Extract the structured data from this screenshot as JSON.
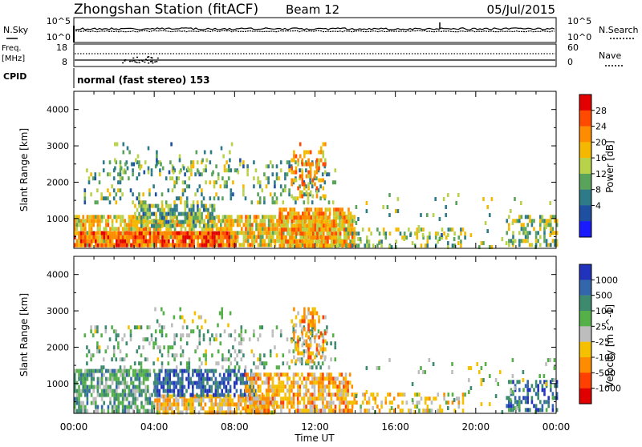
{
  "header": {
    "station": "Zhongshan Station (fitACF)",
    "beam": "Beam 12",
    "date": "05/Jul/2015"
  },
  "noise_panel": {
    "left_label": "N.Sky",
    "right_label": "N.Search",
    "left_ticks": [
      "10^5",
      "10^0"
    ],
    "right_ticks": [
      "10^5",
      "10^0"
    ]
  },
  "freq_panel": {
    "left_label_1": "Freq.",
    "left_label_2": "[MHz]",
    "left_ticks": [
      "18",
      "8"
    ],
    "right_label": "Nave",
    "right_ticks": [
      "60",
      "0"
    ]
  },
  "cpid": {
    "label": "CPID",
    "value": "normal (fast stereo) 153"
  },
  "axes": {
    "ylabel": "Slant Range [km]",
    "xlabel": "Time UT",
    "y_ticks": [
      "4000",
      "3000",
      "2000",
      "1000"
    ],
    "x_ticks": [
      "00:00",
      "04:00",
      "08:00",
      "12:00",
      "16:00",
      "20:00",
      "00:00"
    ]
  },
  "power_scale": {
    "title": "Power [dB]",
    "labels": [
      "28",
      "24",
      "20",
      "16",
      "12",
      "8",
      "4"
    ],
    "colors": [
      "#e30000",
      "#ff4a00",
      "#ff8c00",
      "#f5b800",
      "#b8d24a",
      "#5aa35a",
      "#2f7a88",
      "#1f4fa0",
      "#1a1aff"
    ]
  },
  "velocity_scale": {
    "title": "Velocity [m s^-1]",
    "labels": [
      "1000",
      "500",
      "100",
      "25",
      "-25",
      "-100",
      "-500",
      "-1000"
    ],
    "colors": [
      "#2233bb",
      "#3366aa",
      "#3d8a6e",
      "#55b04a",
      "#bdbdbd",
      "#f5c000",
      "#ff8c00",
      "#ff4000",
      "#e00000"
    ]
  },
  "chart_data": [
    {
      "type": "heatmap",
      "name": "Power",
      "xlabel": "Time UT",
      "ylabel": "Slant Range [km]",
      "xlim": [
        0,
        24
      ],
      "ylim": [
        180,
        4500
      ],
      "colorbar_range": [
        0,
        30
      ],
      "blobs": [
        {
          "t0": 0.0,
          "t1": 14.0,
          "r0": 220,
          "r1": 1100,
          "dens": 0.75,
          "v": 18
        },
        {
          "t0": 0.0,
          "t1": 8.0,
          "r0": 220,
          "r1": 650,
          "dens": 0.85,
          "v": 24
        },
        {
          "t0": 3.0,
          "t1": 7.0,
          "r0": 800,
          "r1": 1400,
          "dens": 0.7,
          "v": 12
        },
        {
          "t0": 10.2,
          "t1": 13.8,
          "r0": 300,
          "r1": 1300,
          "dens": 0.8,
          "v": 20
        },
        {
          "t0": 0.5,
          "t1": 13.0,
          "r0": 1400,
          "r1": 2600,
          "dens": 0.22,
          "v": 12
        },
        {
          "t0": 2.0,
          "t1": 8.5,
          "r0": 2300,
          "r1": 3100,
          "dens": 0.12,
          "v": 10
        },
        {
          "t0": 10.8,
          "t1": 12.5,
          "r0": 1600,
          "r1": 3100,
          "dens": 0.35,
          "v": 20
        },
        {
          "t0": 13.5,
          "t1": 19.5,
          "r0": 300,
          "r1": 750,
          "dens": 0.32,
          "v": 14
        },
        {
          "t0": 21.5,
          "t1": 24.0,
          "r0": 250,
          "r1": 1100,
          "dens": 0.45,
          "v": 14
        },
        {
          "t0": 14.0,
          "t1": 24.0,
          "r0": 180,
          "r1": 1700,
          "dens": 0.04,
          "v": 12
        }
      ]
    },
    {
      "type": "heatmap",
      "name": "Velocity",
      "xlabel": "Time UT",
      "ylabel": "Slant Range [km]",
      "xlim": [
        0,
        24
      ],
      "ylim": [
        180,
        4500
      ],
      "colorbar_range": [
        -1000,
        1000
      ],
      "blobs": [
        {
          "t0": 0.0,
          "t1": 4.0,
          "r0": 220,
          "r1": 1400,
          "dens": 0.7,
          "v": 300
        },
        {
          "t0": 4.0,
          "t1": 10.0,
          "r0": 220,
          "r1": 700,
          "dens": 0.8,
          "v": -200
        },
        {
          "t0": 4.0,
          "t1": 9.0,
          "r0": 700,
          "r1": 1400,
          "dens": 0.65,
          "v": 700
        },
        {
          "t0": 8.5,
          "t1": 13.8,
          "r0": 300,
          "r1": 1300,
          "dens": 0.7,
          "v": -300
        },
        {
          "t0": 0.5,
          "t1": 13.0,
          "r0": 1400,
          "r1": 2600,
          "dens": 0.22,
          "v": 200
        },
        {
          "t0": 4.0,
          "t1": 8.0,
          "r0": 2600,
          "r1": 3100,
          "dens": 0.12,
          "v": 10
        },
        {
          "t0": 10.8,
          "t1": 12.5,
          "r0": 1600,
          "r1": 3100,
          "dens": 0.35,
          "v": -300
        },
        {
          "t0": 13.5,
          "t1": 19.5,
          "r0": 300,
          "r1": 750,
          "dens": 0.32,
          "v": -150
        },
        {
          "t0": 21.5,
          "t1": 24.0,
          "r0": 250,
          "r1": 1100,
          "dens": 0.45,
          "v": 600
        },
        {
          "t0": 14.0,
          "t1": 24.0,
          "r0": 180,
          "r1": 1700,
          "dens": 0.04,
          "v": 100
        }
      ]
    }
  ]
}
